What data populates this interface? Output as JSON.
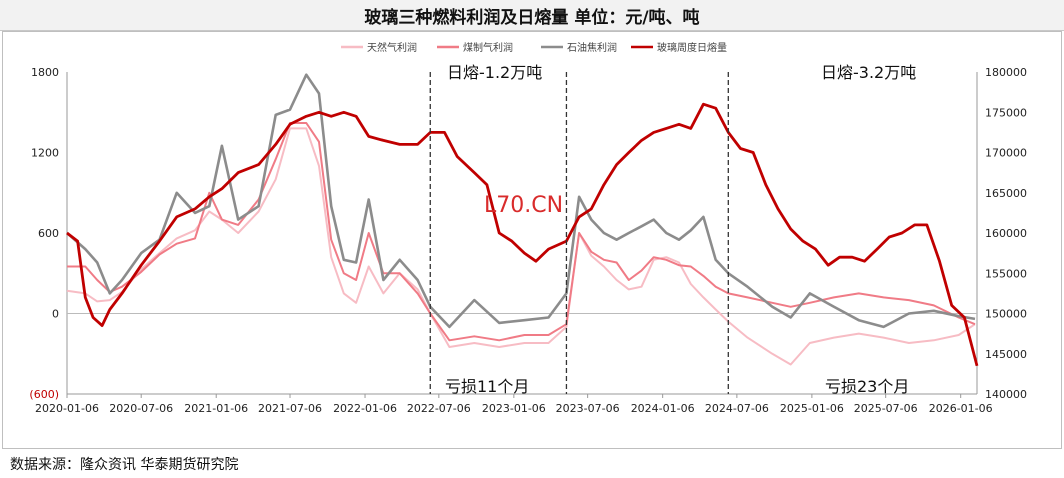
{
  "title": "玻璃三种燃料利润及日熔量    单位：元/吨、吨",
  "source": "数据来源：隆众资讯  华泰期货研究院",
  "watermark": "L70.CN",
  "chart_data": {
    "type": "line",
    "title": "玻璃三种燃料利润及日熔量    单位：元/吨、吨",
    "x_tick_labels": [
      "2020-01-06",
      "2020-07-06",
      "2021-01-06",
      "2021-07-06",
      "2022-01-06",
      "2022-07-06",
      "2023-01-06",
      "2023-07-06",
      "2024-01-06",
      "2024-07-06",
      "2025-01-06",
      "2025-07-06",
      "2026-01-06"
    ],
    "x_range": [
      "2020-01-06",
      "2026-02-15"
    ],
    "y_left": {
      "range": [
        -600,
        1800
      ],
      "ticks": [
        "(600)",
        "0",
        "600",
        "1200",
        "1800"
      ]
    },
    "y_right": {
      "range": [
        140000,
        180000
      ],
      "ticks": [
        "140000",
        "145000",
        "150000",
        "155000",
        "160000",
        "165000",
        "170000",
        "175000",
        "180000"
      ]
    },
    "legend_position": "top",
    "grid": false,
    "colors": {
      "natural_gas": "#f7bcc4",
      "coal_gas": "#f07b86",
      "petcoke": "#8c8c8c",
      "daily_melt": "#c00000",
      "divider": "#333333"
    },
    "annotations": [
      {
        "text": "日熔-1.2万吨"
      },
      {
        "text": "日熔-3.2万吨"
      },
      {
        "text": "亏损11个月"
      },
      {
        "text": "亏损23个月"
      }
    ],
    "dividers": [
      "2022-06-15",
      "2023-05-15",
      "2024-06-15"
    ],
    "series": [
      {
        "name": "天然气利润",
        "axis": "left",
        "points": [
          [
            "2020-01-06",
            170
          ],
          [
            "2020-02-20",
            150
          ],
          [
            "2020-03-20",
            90
          ],
          [
            "2020-04-20",
            100
          ],
          [
            "2020-05-20",
            160
          ],
          [
            "2020-07-06",
            330
          ],
          [
            "2020-08-20",
            450
          ],
          [
            "2020-10-01",
            560
          ],
          [
            "2020-11-15",
            620
          ],
          [
            "2020-12-20",
            760
          ],
          [
            "2021-01-20",
            700
          ],
          [
            "2021-03-01",
            600
          ],
          [
            "2021-04-20",
            760
          ],
          [
            "2021-06-01",
            1000
          ],
          [
            "2021-07-06",
            1380
          ],
          [
            "2021-08-15",
            1380
          ],
          [
            "2021-09-15",
            1100
          ],
          [
            "2021-10-15",
            420
          ],
          [
            "2021-11-15",
            150
          ],
          [
            "2021-12-15",
            80
          ],
          [
            "2022-01-15",
            350
          ],
          [
            "2022-02-20",
            150
          ],
          [
            "2022-04-01",
            300
          ],
          [
            "2022-05-15",
            180
          ],
          [
            "2022-06-15",
            0
          ],
          [
            "2022-08-01",
            -250
          ],
          [
            "2022-10-01",
            -220
          ],
          [
            "2022-12-01",
            -250
          ],
          [
            "2023-02-01",
            -220
          ],
          [
            "2023-04-01",
            -220
          ],
          [
            "2023-05-15",
            -100
          ],
          [
            "2023-06-15",
            600
          ],
          [
            "2023-07-15",
            430
          ],
          [
            "2023-08-15",
            350
          ],
          [
            "2023-09-15",
            250
          ],
          [
            "2023-10-15",
            180
          ],
          [
            "2023-11-15",
            200
          ],
          [
            "2023-12-15",
            400
          ],
          [
            "2024-01-15",
            420
          ],
          [
            "2024-02-15",
            380
          ],
          [
            "2024-03-15",
            220
          ],
          [
            "2024-04-15",
            120
          ],
          [
            "2024-05-15",
            30
          ],
          [
            "2024-06-15",
            -60
          ],
          [
            "2024-08-01",
            -180
          ],
          [
            "2024-10-01",
            -300
          ],
          [
            "2024-11-15",
            -380
          ],
          [
            "2025-01-01",
            -220
          ],
          [
            "2025-03-01",
            -180
          ],
          [
            "2025-05-01",
            -150
          ],
          [
            "2025-07-01",
            -180
          ],
          [
            "2025-09-01",
            -220
          ],
          [
            "2025-11-01",
            -200
          ],
          [
            "2026-01-01",
            -160
          ],
          [
            "2026-02-10",
            -80
          ]
        ]
      },
      {
        "name": "煤制气利润",
        "axis": "left",
        "points": [
          [
            "2020-01-06",
            350
          ],
          [
            "2020-02-20",
            350
          ],
          [
            "2020-03-20",
            250
          ],
          [
            "2020-04-20",
            160
          ],
          [
            "2020-05-20",
            200
          ],
          [
            "2020-07-06",
            310
          ],
          [
            "2020-08-20",
            440
          ],
          [
            "2020-10-01",
            520
          ],
          [
            "2020-11-15",
            560
          ],
          [
            "2020-12-20",
            900
          ],
          [
            "2021-01-20",
            700
          ],
          [
            "2021-03-01",
            660
          ],
          [
            "2021-04-20",
            850
          ],
          [
            "2021-06-01",
            1150
          ],
          [
            "2021-07-06",
            1420
          ],
          [
            "2021-08-15",
            1420
          ],
          [
            "2021-09-15",
            1280
          ],
          [
            "2021-10-15",
            550
          ],
          [
            "2021-11-15",
            300
          ],
          [
            "2021-12-15",
            250
          ],
          [
            "2022-01-15",
            600
          ],
          [
            "2022-02-20",
            300
          ],
          [
            "2022-04-01",
            300
          ],
          [
            "2022-05-15",
            150
          ],
          [
            "2022-06-15",
            0
          ],
          [
            "2022-08-01",
            -200
          ],
          [
            "2022-10-01",
            -170
          ],
          [
            "2022-12-01",
            -200
          ],
          [
            "2023-02-01",
            -160
          ],
          [
            "2023-04-01",
            -160
          ],
          [
            "2023-05-15",
            -80
          ],
          [
            "2023-06-15",
            600
          ],
          [
            "2023-07-15",
            460
          ],
          [
            "2023-08-15",
            400
          ],
          [
            "2023-09-15",
            380
          ],
          [
            "2023-10-15",
            250
          ],
          [
            "2023-11-15",
            320
          ],
          [
            "2023-12-15",
            420
          ],
          [
            "2024-01-15",
            400
          ],
          [
            "2024-02-15",
            360
          ],
          [
            "2024-03-15",
            350
          ],
          [
            "2024-04-15",
            280
          ],
          [
            "2024-05-15",
            200
          ],
          [
            "2024-06-15",
            150
          ],
          [
            "2024-08-01",
            120
          ],
          [
            "2024-10-01",
            80
          ],
          [
            "2024-11-15",
            50
          ],
          [
            "2025-01-01",
            80
          ],
          [
            "2025-03-01",
            120
          ],
          [
            "2025-05-01",
            150
          ],
          [
            "2025-07-01",
            120
          ],
          [
            "2025-09-01",
            100
          ],
          [
            "2025-11-01",
            60
          ],
          [
            "2026-01-01",
            -30
          ],
          [
            "2026-02-10",
            -80
          ]
        ]
      },
      {
        "name": "石油焦利润",
        "axis": "left",
        "points": [
          [
            "2020-01-06",
            600
          ],
          [
            "2020-02-20",
            480
          ],
          [
            "2020-03-20",
            380
          ],
          [
            "2020-04-20",
            150
          ],
          [
            "2020-05-20",
            250
          ],
          [
            "2020-07-06",
            450
          ],
          [
            "2020-08-20",
            550
          ],
          [
            "2020-10-01",
            900
          ],
          [
            "2020-11-15",
            750
          ],
          [
            "2020-12-20",
            800
          ],
          [
            "2021-01-20",
            1250
          ],
          [
            "2021-03-01",
            700
          ],
          [
            "2021-04-20",
            800
          ],
          [
            "2021-06-01",
            1480
          ],
          [
            "2021-07-06",
            1520
          ],
          [
            "2021-08-15",
            1780
          ],
          [
            "2021-09-15",
            1640
          ],
          [
            "2021-10-15",
            800
          ],
          [
            "2021-11-15",
            400
          ],
          [
            "2021-12-15",
            380
          ],
          [
            "2022-01-15",
            850
          ],
          [
            "2022-02-20",
            250
          ],
          [
            "2022-04-01",
            400
          ],
          [
            "2022-05-15",
            250
          ],
          [
            "2022-06-15",
            50
          ],
          [
            "2022-08-01",
            -100
          ],
          [
            "2022-10-01",
            100
          ],
          [
            "2022-12-01",
            -70
          ],
          [
            "2023-02-01",
            -50
          ],
          [
            "2023-04-01",
            -30
          ],
          [
            "2023-05-15",
            150
          ],
          [
            "2023-06-15",
            870
          ],
          [
            "2023-07-15",
            700
          ],
          [
            "2023-08-15",
            600
          ],
          [
            "2023-09-15",
            550
          ],
          [
            "2023-10-15",
            600
          ],
          [
            "2023-11-15",
            650
          ],
          [
            "2023-12-15",
            700
          ],
          [
            "2024-01-15",
            600
          ],
          [
            "2024-02-15",
            550
          ],
          [
            "2024-03-15",
            620
          ],
          [
            "2024-04-15",
            720
          ],
          [
            "2024-05-15",
            400
          ],
          [
            "2024-06-15",
            300
          ],
          [
            "2024-08-01",
            200
          ],
          [
            "2024-10-01",
            50
          ],
          [
            "2024-11-15",
            -30
          ],
          [
            "2025-01-01",
            150
          ],
          [
            "2025-03-01",
            50
          ],
          [
            "2025-05-01",
            -50
          ],
          [
            "2025-07-01",
            -100
          ],
          [
            "2025-09-01",
            0
          ],
          [
            "2025-11-01",
            20
          ],
          [
            "2026-01-01",
            -20
          ],
          [
            "2026-02-10",
            -40
          ]
        ]
      },
      {
        "name": "玻璃周度日熔量",
        "axis": "right",
        "points": [
          [
            "2020-01-06",
            160000
          ],
          [
            "2020-02-01",
            159000
          ],
          [
            "2020-02-20",
            152000
          ],
          [
            "2020-03-10",
            149500
          ],
          [
            "2020-04-01",
            148500
          ],
          [
            "2020-04-20",
            150500
          ],
          [
            "2020-05-20",
            152500
          ],
          [
            "2020-07-06",
            156000
          ],
          [
            "2020-08-20",
            159000
          ],
          [
            "2020-10-01",
            162000
          ],
          [
            "2020-11-15",
            163000
          ],
          [
            "2020-12-20",
            164500
          ],
          [
            "2021-01-20",
            165500
          ],
          [
            "2021-03-01",
            167500
          ],
          [
            "2021-04-20",
            168500
          ],
          [
            "2021-06-01",
            171000
          ],
          [
            "2021-07-06",
            173500
          ],
          [
            "2021-08-15",
            174500
          ],
          [
            "2021-09-15",
            175000
          ],
          [
            "2021-10-15",
            174500
          ],
          [
            "2021-11-15",
            175000
          ],
          [
            "2021-12-15",
            174500
          ],
          [
            "2022-01-15",
            172000
          ],
          [
            "2022-02-20",
            171500
          ],
          [
            "2022-04-01",
            171000
          ],
          [
            "2022-05-15",
            171000
          ],
          [
            "2022-06-15",
            172500
          ],
          [
            "2022-07-20",
            172500
          ],
          [
            "2022-08-20",
            169500
          ],
          [
            "2022-10-01",
            167500
          ],
          [
            "2022-11-01",
            166000
          ],
          [
            "2022-12-01",
            160000
          ],
          [
            "2023-01-01",
            159000
          ],
          [
            "2023-02-01",
            157500
          ],
          [
            "2023-03-01",
            156500
          ],
          [
            "2023-04-01",
            158000
          ],
          [
            "2023-05-15",
            159000
          ],
          [
            "2023-06-15",
            162000
          ],
          [
            "2023-07-15",
            163000
          ],
          [
            "2023-08-15",
            166000
          ],
          [
            "2023-09-15",
            168500
          ],
          [
            "2023-10-15",
            170000
          ],
          [
            "2023-11-15",
            171500
          ],
          [
            "2023-12-15",
            172500
          ],
          [
            "2024-01-15",
            173000
          ],
          [
            "2024-02-15",
            173500
          ],
          [
            "2024-03-15",
            173000
          ],
          [
            "2024-04-15",
            176000
          ],
          [
            "2024-05-15",
            175500
          ],
          [
            "2024-06-15",
            172500
          ],
          [
            "2024-07-15",
            170500
          ],
          [
            "2024-08-15",
            170000
          ],
          [
            "2024-09-15",
            166000
          ],
          [
            "2024-10-15",
            163000
          ],
          [
            "2024-11-15",
            160500
          ],
          [
            "2024-12-15",
            159000
          ],
          [
            "2025-01-15",
            158000
          ],
          [
            "2025-02-15",
            156000
          ],
          [
            "2025-03-15",
            157000
          ],
          [
            "2025-04-15",
            157000
          ],
          [
            "2025-05-15",
            156500
          ],
          [
            "2025-06-15",
            158000
          ],
          [
            "2025-07-15",
            159500
          ],
          [
            "2025-08-15",
            160000
          ],
          [
            "2025-09-15",
            161000
          ],
          [
            "2025-10-15",
            161000
          ],
          [
            "2025-11-15",
            156500
          ],
          [
            "2025-12-15",
            151000
          ],
          [
            "2026-01-15",
            149500
          ],
          [
            "2026-02-15",
            143500
          ]
        ]
      }
    ]
  }
}
